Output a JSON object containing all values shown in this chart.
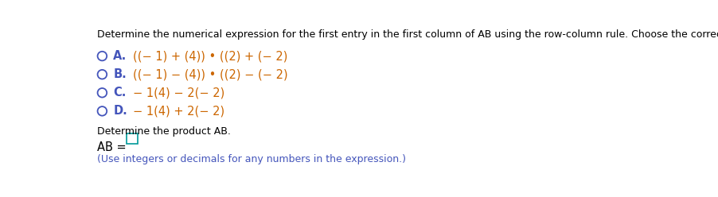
{
  "bg_color": "#ffffff",
  "text_color": "#000000",
  "blue_color": "#4455bb",
  "orange_color": "#cc6600",
  "header": "Determine the numerical expression for the first entry in the first column of AB using the row-column rule. Choose the correct answer below.",
  "options": [
    {
      "label": "A.",
      "text": "((− 1) + (4)) • ((2) + (− 2)"
    },
    {
      "label": "B.",
      "text": "((− 1) − (4)) • ((2) − (− 2)"
    },
    {
      "label": "C.",
      "text": "− 1(4) − 2(− 2)"
    },
    {
      "label": "D.",
      "text": "− 1(4) + 2(− 2)"
    }
  ],
  "footer1": "Determine the product AB.",
  "footer2": "AB =",
  "footer3": "(Use integers or decimals for any numbers in the expression.)",
  "header_fontsize": 9.0,
  "option_fontsize": 10.5,
  "footer_fontsize": 9.0,
  "ab_fontsize": 10.5
}
